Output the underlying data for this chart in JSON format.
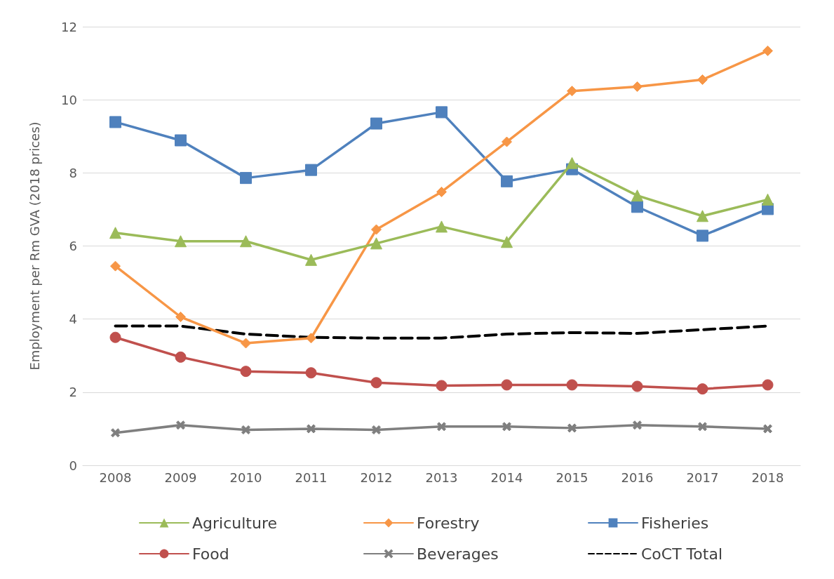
{
  "chart_data": {
    "type": "line",
    "ylabel": "Employment per Rm GVA (2018 prices)",
    "categories": [
      "2008",
      "2009",
      "2010",
      "2011",
      "2012",
      "2013",
      "2014",
      "2015",
      "2016",
      "2017",
      "2018"
    ],
    "ylim": [
      0,
      12
    ],
    "yticks": [
      0,
      2,
      4,
      6,
      8,
      10,
      12
    ],
    "grid": "y",
    "legend": "bottom",
    "series": [
      {
        "name": "Agriculture",
        "color": "#9bbb59",
        "marker": "triangle",
        "values": [
          6.36,
          6.13,
          6.13,
          5.62,
          6.07,
          6.53,
          6.11,
          8.27,
          7.38,
          6.82,
          7.27
        ]
      },
      {
        "name": "Forestry",
        "color": "#f79646",
        "marker": "diamond",
        "values": [
          5.45,
          4.06,
          3.34,
          3.48,
          6.45,
          7.48,
          8.85,
          10.24,
          10.36,
          10.55,
          11.34
        ]
      },
      {
        "name": "Fisheries",
        "color": "#4f81bd",
        "marker": "square",
        "values": [
          9.39,
          8.89,
          7.86,
          8.08,
          9.35,
          9.66,
          7.77,
          8.1,
          7.07,
          6.28,
          7.01
        ]
      },
      {
        "name": "Food",
        "color": "#c0504d",
        "marker": "circle",
        "values": [
          3.5,
          2.96,
          2.57,
          2.53,
          2.26,
          2.18,
          2.2,
          2.2,
          2.16,
          2.09,
          2.2
        ]
      },
      {
        "name": "Beverages",
        "color": "#7f7f7f",
        "marker": "cross",
        "values": [
          0.89,
          1.1,
          0.97,
          1.0,
          0.97,
          1.06,
          1.06,
          1.02,
          1.1,
          1.06,
          1.0
        ]
      },
      {
        "name": "CoCT Total",
        "color": "#000000",
        "marker": "none",
        "line_style": "dashed",
        "values": [
          3.81,
          3.81,
          3.59,
          3.5,
          3.48,
          3.48,
          3.59,
          3.63,
          3.61,
          3.71,
          3.81
        ]
      }
    ]
  }
}
